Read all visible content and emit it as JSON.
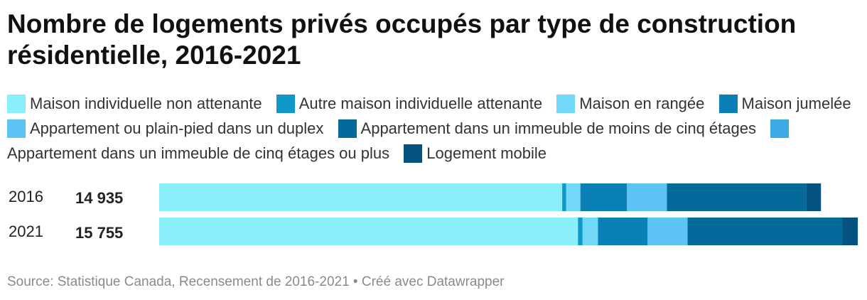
{
  "title": "Nombre de logements privés occupés par type de construction résidentielle, 2016-2021",
  "source": "Source: Statistique Canada, Recensement de 2016-2021 • Créé avec Datawrapper",
  "chart_data": {
    "type": "bar",
    "orientation": "horizontal",
    "stacked": true,
    "title": "Nombre de logements privés occupés par type de construction résidentielle, 2016-2021",
    "categories": [
      "2016",
      "2021"
    ],
    "totals": [
      "14 935",
      "15 755"
    ],
    "legend_position": "top",
    "grid": false,
    "xlim": [
      0,
      15755
    ],
    "series": [
      {
        "name": "Maison individuelle non attenante",
        "color": "#8beefb",
        "values": [
          9080,
          9435
        ]
      },
      {
        "name": "Autre maison individuelle attenante",
        "color": "#0e99c9",
        "values": [
          90,
          105
        ]
      },
      {
        "name": "Maison en rangée",
        "color": "#72d8f8",
        "values": [
          320,
          345
        ]
      },
      {
        "name": "Maison jumelée",
        "color": "#0a80b6",
        "values": [
          1050,
          1120
        ]
      },
      {
        "name": "Appartement ou plain-pied dans un duplex",
        "color": "#5cc4f5",
        "values": [
          900,
          900
        ]
      },
      {
        "name": "Appartement dans un immeuble de moins de cinq étages",
        "color": "#046a9c",
        "values": [
          3140,
          3490
        ]
      },
      {
        "name": "Appartement dans un immeuble de cinq étages ou plus",
        "color": "#3aa9e4",
        "values": [
          0,
          0
        ]
      },
      {
        "name": "Logement mobile",
        "color": "#03527f",
        "values": [
          330,
          345
        ]
      }
    ]
  }
}
